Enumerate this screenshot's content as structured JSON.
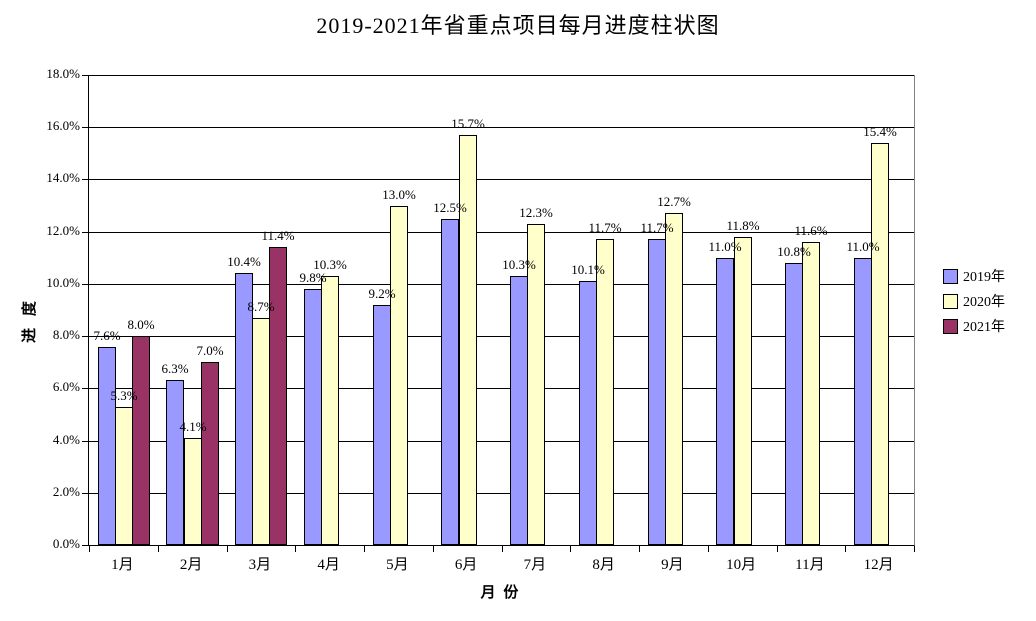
{
  "title": "2019-2021年省重点项目每月进度柱状图",
  "chart_data": {
    "type": "bar",
    "title": "2019-2021年省重点项目每月进度柱状图",
    "xlabel": "月 份",
    "ylabel": "进 度",
    "ylim": [
      0,
      18
    ],
    "ytick_step": 2,
    "ytick_labels": [
      "0.0%",
      "2.0%",
      "4.0%",
      "6.0%",
      "8.0%",
      "10.0%",
      "12.0%",
      "14.0%",
      "16.0%",
      "18.0%"
    ],
    "grid": true,
    "legend_position": "right",
    "data_labels_shown": true,
    "categories": [
      "1月",
      "2月",
      "3月",
      "4月",
      "5月",
      "6月",
      "7月",
      "8月",
      "9月",
      "10月",
      "11月",
      "12月"
    ],
    "series": [
      {
        "name": "2019年",
        "color": "#9999FF",
        "values": [
          7.6,
          6.3,
          10.4,
          9.8,
          9.2,
          12.5,
          10.3,
          10.1,
          11.7,
          11.0,
          10.8,
          11.0
        ]
      },
      {
        "name": "2020年",
        "color": "#FFFFCC",
        "values": [
          5.3,
          4.1,
          8.7,
          10.3,
          13.0,
          15.7,
          12.3,
          11.7,
          12.7,
          11.8,
          11.6,
          15.4
        ]
      },
      {
        "name": "2021年",
        "color": "#993366",
        "values": [
          8.0,
          7.0,
          11.4,
          null,
          null,
          null,
          null,
          null,
          null,
          null,
          null,
          null
        ]
      }
    ]
  },
  "colors": {
    "bar_border": "#000000",
    "gridline": "#000000",
    "axis": "#000000",
    "plot_border": "#808080",
    "text": "#000000",
    "background": "#FFFFFF"
  }
}
